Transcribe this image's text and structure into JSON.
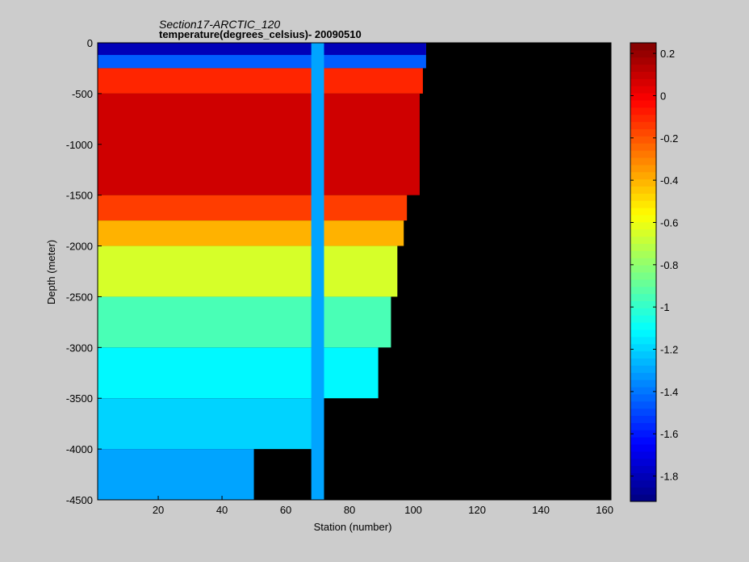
{
  "chart_data": {
    "type": "heatmap",
    "title": "Section17-ARCTIC_120",
    "subtitle": "temperature(degrees_celsius)- 20090510",
    "xlabel": "Station (number)",
    "ylabel": "Depth (meter)",
    "xlim": [
      1,
      162
    ],
    "ylim": [
      -4500,
      0
    ],
    "x_ticks": [
      20,
      40,
      60,
      80,
      100,
      120,
      140,
      160
    ],
    "y_ticks": [
      0,
      -500,
      -1000,
      -1500,
      -2000,
      -2500,
      -3000,
      -3500,
      -4000,
      -4500
    ],
    "colorbar": {
      "range": [
        -1.92,
        0.25
      ],
      "ticks": [
        0.2,
        0,
        -0.2,
        -0.4,
        -0.6,
        -0.8,
        -1,
        -1.2,
        -1.4,
        -1.6,
        -1.8
      ],
      "colormap": "jet"
    },
    "missing_color": "#000000",
    "regions": [
      {
        "x": [
          1,
          104
        ],
        "depth": [
          0,
          250
        ],
        "value": -1.45
      },
      {
        "x": [
          1,
          104
        ],
        "depth": [
          0,
          120
        ],
        "value": -1.8
      },
      {
        "x": [
          1,
          103
        ],
        "depth": [
          250,
          500
        ],
        "value": -0.1
      },
      {
        "x": [
          1,
          102
        ],
        "depth": [
          500,
          1500
        ],
        "value": 0.08
      },
      {
        "x": [
          1,
          98
        ],
        "depth": [
          1500,
          1750
        ],
        "value": -0.15
      },
      {
        "x": [
          1,
          97
        ],
        "depth": [
          1750,
          2000
        ],
        "value": -0.4
      },
      {
        "x": [
          1,
          95
        ],
        "depth": [
          2000,
          2500
        ],
        "value": -0.65
      },
      {
        "x": [
          1,
          93
        ],
        "depth": [
          2500,
          3000
        ],
        "value": -0.95
      },
      {
        "x": [
          1,
          89
        ],
        "depth": [
          3000,
          3500
        ],
        "value": -1.12
      },
      {
        "x": [
          1,
          72
        ],
        "depth": [
          3500,
          4000
        ],
        "value": -1.2
      },
      {
        "x": [
          1,
          50
        ],
        "depth": [
          4000,
          4500
        ],
        "value": -1.3
      },
      {
        "x": [
          68,
          72
        ],
        "depth": [
          0,
          4500
        ],
        "value": -1.3
      }
    ]
  }
}
